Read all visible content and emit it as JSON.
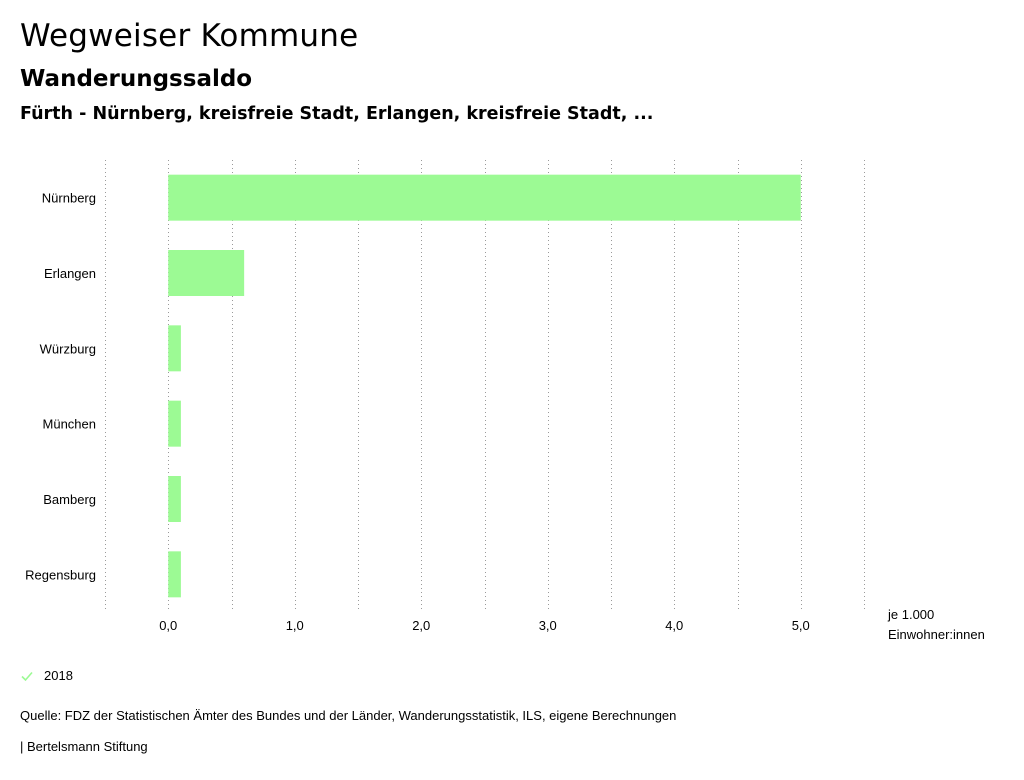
{
  "header": {
    "title": "Wegweiser Kommune",
    "subtitle": "Wanderungssaldo",
    "regions": "Fürth - Nürnberg, kreisfreie Stadt, Erlangen, kreisfreie Stadt, ..."
  },
  "chart_data": {
    "type": "bar",
    "orientation": "horizontal",
    "categories": [
      "Nürnberg",
      "Erlangen",
      "Würzburg",
      "München",
      "Bamberg",
      "Regensburg"
    ],
    "series": [
      {
        "name": "2018",
        "values": [
          5.0,
          0.6,
          0.1,
          0.1,
          0.1,
          0.1
        ],
        "color": "#9cfa94"
      }
    ],
    "xlim": [
      -0.5,
      5.5
    ],
    "xticks": [
      0,
      1,
      2,
      3,
      4,
      5
    ],
    "xtick_labels": [
      "0,0",
      "1,0",
      "2,0",
      "3,0",
      "4,0",
      "5,0"
    ],
    "xlabel_line1": "je 1.000",
    "xlabel_line2": "Einwohner:innen",
    "grid": true,
    "legend_position": "bottom-left"
  },
  "legend": {
    "label": "2018",
    "color": "#9cfa94"
  },
  "footer": {
    "source": "Quelle: FDZ der Statistischen Ämter des Bundes und der Länder, Wanderungsstatistik, ILS, eigene Berechnungen",
    "publisher": "| Bertelsmann Stiftung"
  }
}
